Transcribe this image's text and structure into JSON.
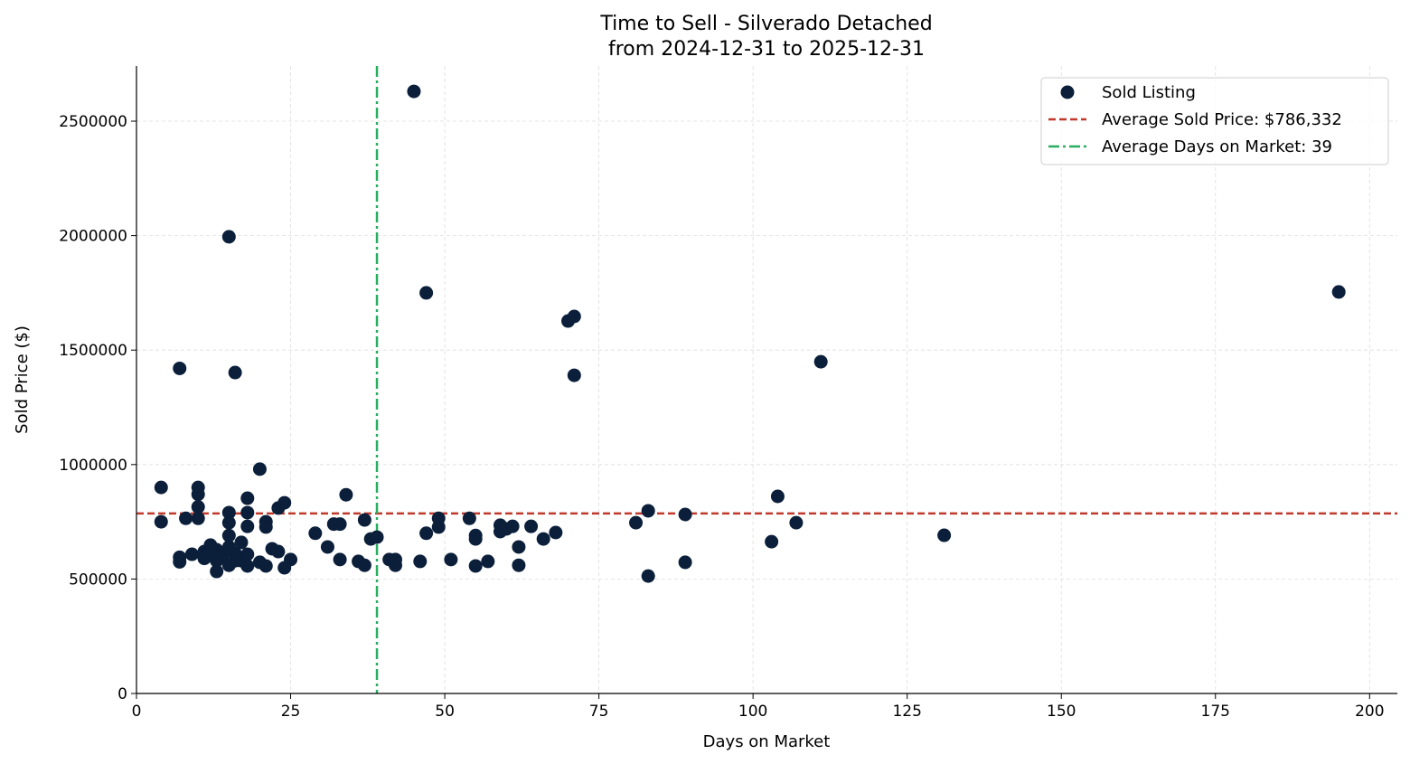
{
  "chart_data": {
    "type": "scatter",
    "title": "Time to Sell - Silverado Detached",
    "subtitle": "from 2024-12-31 to 2025-12-31",
    "xlabel": "Days on Market",
    "ylabel": "Sold Price ($)",
    "xlim": [
      0,
      204.5
    ],
    "ylim": [
      0,
      2741000
    ],
    "xticks": [
      0,
      25,
      50,
      75,
      100,
      125,
      150,
      175,
      200
    ],
    "yticks": [
      0,
      500000,
      1000000,
      1500000,
      2000000,
      2500000
    ],
    "grid": true,
    "legend_position": "top-right",
    "colors": {
      "points": "#0b1f3a",
      "avg_price": "#c0392b",
      "avg_days": "#27ae60"
    },
    "series": [
      {
        "name": "Sold Listing",
        "points": [
          [
            4,
            900000
          ],
          [
            4,
            750000
          ],
          [
            7,
            1420000
          ],
          [
            7,
            595000
          ],
          [
            7,
            575000
          ],
          [
            8,
            765000
          ],
          [
            9,
            608000
          ],
          [
            10,
            900000
          ],
          [
            10,
            870000
          ],
          [
            10,
            815000
          ],
          [
            10,
            765000
          ],
          [
            11,
            620000
          ],
          [
            11,
            590000
          ],
          [
            12,
            648000
          ],
          [
            12,
            612000
          ],
          [
            13,
            533000
          ],
          [
            13,
            628000
          ],
          [
            13,
            580000
          ],
          [
            14,
            604000
          ],
          [
            15,
            1995000
          ],
          [
            15,
            790000
          ],
          [
            15,
            746000
          ],
          [
            15,
            690000
          ],
          [
            15,
            560000
          ],
          [
            15,
            640000
          ],
          [
            16,
            1402000
          ],
          [
            16,
            612000
          ],
          [
            16,
            580000
          ],
          [
            17,
            660000
          ],
          [
            17,
            580000
          ],
          [
            18,
            853000
          ],
          [
            18,
            790000
          ],
          [
            18,
            730000
          ],
          [
            18,
            557000
          ],
          [
            18,
            608000
          ],
          [
            20,
            980000
          ],
          [
            20,
            573000
          ],
          [
            21,
            750000
          ],
          [
            21,
            727000
          ],
          [
            21,
            557000
          ],
          [
            22,
            632000
          ],
          [
            23,
            620000
          ],
          [
            23,
            810000
          ],
          [
            24,
            833000
          ],
          [
            24,
            549000
          ],
          [
            25,
            585000
          ],
          [
            29,
            700000
          ],
          [
            31,
            640000
          ],
          [
            32,
            740000
          ],
          [
            33,
            740000
          ],
          [
            33,
            585000
          ],
          [
            34,
            868000
          ],
          [
            36,
            577000
          ],
          [
            37,
            758000
          ],
          [
            37,
            560000
          ],
          [
            38,
            675000
          ],
          [
            39,
            683000
          ],
          [
            41,
            585000
          ],
          [
            42,
            585000
          ],
          [
            42,
            560000
          ],
          [
            45,
            2630000
          ],
          [
            46,
            577000
          ],
          [
            47,
            1750000
          ],
          [
            47,
            700000
          ],
          [
            49,
            765000
          ],
          [
            49,
            727000
          ],
          [
            51,
            585000
          ],
          [
            54,
            765000
          ],
          [
            55,
            690000
          ],
          [
            55,
            675000
          ],
          [
            55,
            557000
          ],
          [
            57,
            577000
          ],
          [
            59,
            735000
          ],
          [
            59,
            707000
          ],
          [
            60,
            719000
          ],
          [
            61,
            730000
          ],
          [
            62,
            640000
          ],
          [
            62,
            560000
          ],
          [
            64,
            730000
          ],
          [
            66,
            675000
          ],
          [
            68,
            703000
          ],
          [
            70,
            1627000
          ],
          [
            71,
            1647000
          ],
          [
            71,
            1390000
          ],
          [
            81,
            746000
          ],
          [
            83,
            798000
          ],
          [
            83,
            513000
          ],
          [
            89,
            782000
          ],
          [
            89,
            573000
          ],
          [
            103,
            663000
          ],
          [
            104,
            861000
          ],
          [
            107,
            746000
          ],
          [
            111,
            1449000
          ],
          [
            131,
            691000
          ],
          [
            195,
            1754000
          ]
        ]
      }
    ],
    "reference_lines": {
      "avg_price": {
        "label": "Average Sold Price: $786,332",
        "value": 786332
      },
      "avg_days": {
        "label": "Average Days on Market: 39",
        "value": 39
      }
    }
  }
}
